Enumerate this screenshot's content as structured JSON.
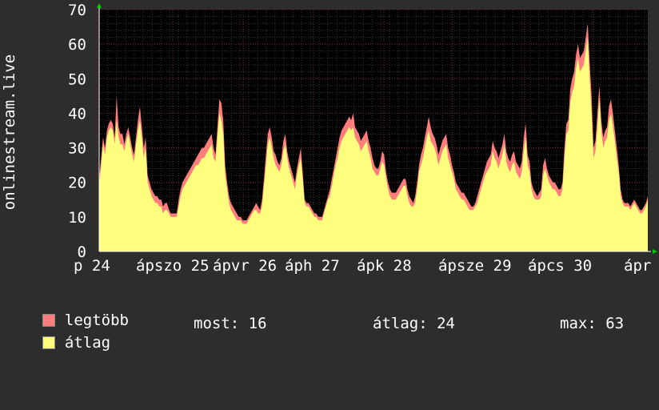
{
  "chart_data": {
    "type": "area",
    "ylabel": "onlinestream.live",
    "ylim": [
      0,
      70
    ],
    "yticks": [
      0,
      10,
      20,
      30,
      40,
      50,
      60,
      70
    ],
    "xtick_labels": [
      "p 24",
      "ápszo 25",
      "ápvr 26",
      "áph 27",
      "ápk 28",
      "ápsze 29",
      "ápcs 30",
      "ápr"
    ],
    "grid": true,
    "series": [
      {
        "name": "legtöbb",
        "color": "#ff7d7d",
        "values": [
          21,
          27,
          33,
          30,
          35,
          37,
          38,
          37,
          33,
          45,
          36,
          34,
          34,
          31,
          34,
          36,
          33,
          30,
          28,
          33,
          38,
          42,
          36,
          30,
          33,
          22,
          20,
          18,
          17,
          16,
          16,
          15,
          15,
          13,
          14,
          14,
          12,
          11,
          11,
          11,
          11,
          15,
          18,
          20,
          21,
          22,
          23,
          24,
          25,
          26,
          27,
          28,
          29,
          30,
          30,
          31,
          32,
          33,
          34,
          30,
          28,
          36,
          44,
          43,
          38,
          25,
          20,
          16,
          14,
          13,
          12,
          11,
          10,
          10,
          9,
          9,
          9,
          10,
          11,
          12,
          13,
          14,
          13,
          12,
          15,
          21,
          28,
          34,
          36,
          33,
          29,
          28,
          26,
          25,
          27,
          32,
          34,
          29,
          26,
          24,
          22,
          20,
          24,
          27,
          30,
          23,
          15,
          14,
          14,
          13,
          12,
          11,
          11,
          10,
          10,
          10,
          12,
          14,
          16,
          18,
          21,
          24,
          27,
          30,
          33,
          35,
          36,
          37,
          38,
          39,
          38,
          40,
          36,
          35,
          34,
          32,
          33,
          34,
          35,
          32,
          30,
          27,
          25,
          24,
          24,
          26,
          29,
          28,
          23,
          20,
          18,
          17,
          17,
          17,
          18,
          19,
          20,
          21,
          21,
          18,
          16,
          15,
          14,
          16,
          20,
          25,
          28,
          30,
          33,
          36,
          39,
          36,
          34,
          33,
          31,
          28,
          30,
          32,
          33,
          34,
          30,
          28,
          25,
          23,
          20,
          19,
          18,
          17,
          17,
          16,
          15,
          14,
          13,
          13,
          14,
          16,
          18,
          20,
          22,
          24,
          26,
          27,
          28,
          32,
          30,
          29,
          27,
          29,
          31,
          34,
          29,
          27,
          26,
          28,
          29,
          26,
          25,
          24,
          26,
          33,
          37,
          28,
          26,
          20,
          18,
          17,
          16,
          17,
          18,
          25,
          27,
          24,
          22,
          21,
          20,
          20,
          19,
          18,
          18,
          20,
          30,
          37,
          38,
          47,
          50,
          52,
          57,
          60,
          56,
          57,
          58,
          62,
          66,
          55,
          45,
          30,
          32,
          40,
          48,
          38,
          33,
          35,
          36,
          42,
          44,
          40,
          35,
          30,
          25,
          18,
          15,
          14,
          14,
          14,
          13,
          14,
          15,
          14,
          13,
          12,
          12,
          13,
          14,
          16
        ]
      },
      {
        "name": "átlag",
        "color": "#ffff7d",
        "values": [
          19,
          25,
          31,
          28,
          33,
          35,
          36,
          35,
          31,
          38,
          33,
          31,
          31,
          29,
          32,
          34,
          31,
          28,
          26,
          31,
          35,
          38,
          33,
          27,
          30,
          20,
          18,
          16,
          15,
          14,
          14,
          13,
          13,
          11,
          12,
          12,
          11,
          10,
          10,
          10,
          10,
          13,
          16,
          18,
          19,
          20,
          21,
          22,
          23,
          24,
          25,
          25,
          26,
          27,
          27,
          28,
          29,
          30,
          31,
          27,
          26,
          33,
          40,
          38,
          34,
          22,
          18,
          14,
          12,
          11,
          10,
          9,
          9,
          9,
          8,
          8,
          8,
          9,
          10,
          11,
          12,
          12,
          11,
          11,
          13,
          19,
          25,
          31,
          33,
          30,
          27,
          25,
          24,
          23,
          25,
          29,
          31,
          27,
          24,
          22,
          20,
          18,
          22,
          25,
          27,
          21,
          14,
          13,
          13,
          12,
          11,
          10,
          10,
          9,
          9,
          9,
          11,
          13,
          15,
          16,
          19,
          22,
          25,
          27,
          30,
          32,
          33,
          34,
          35,
          36,
          35,
          36,
          33,
          32,
          31,
          29,
          30,
          31,
          32,
          29,
          27,
          24,
          23,
          22,
          22,
          24,
          26,
          25,
          21,
          18,
          16,
          15,
          15,
          15,
          16,
          17,
          18,
          19,
          19,
          16,
          14,
          13,
          13,
          14,
          18,
          23,
          25,
          27,
          30,
          33,
          35,
          32,
          31,
          30,
          28,
          25,
          27,
          29,
          30,
          31,
          27,
          25,
          23,
          21,
          18,
          17,
          16,
          15,
          15,
          14,
          13,
          12,
          12,
          12,
          13,
          14,
          16,
          18,
          20,
          22,
          23,
          24,
          25,
          29,
          27,
          26,
          24,
          26,
          28,
          31,
          26,
          24,
          23,
          25,
          26,
          23,
          22,
          21,
          23,
          29,
          33,
          25,
          23,
          18,
          16,
          15,
          15,
          15,
          16,
          22,
          24,
          22,
          20,
          19,
          18,
          18,
          17,
          16,
          16,
          18,
          27,
          34,
          35,
          43,
          46,
          48,
          53,
          56,
          52,
          53,
          54,
          58,
          62,
          50,
          40,
          27,
          29,
          36,
          44,
          35,
          30,
          32,
          33,
          38,
          40,
          36,
          32,
          27,
          23,
          16,
          14,
          13,
          13,
          13,
          12,
          13,
          14,
          13,
          12,
          11,
          11,
          12,
          13,
          15
        ]
      }
    ]
  },
  "legend": {
    "items": [
      {
        "name": "legtöbb",
        "color": "#ff7d7d"
      },
      {
        "name": "átlag",
        "color": "#ffff7d"
      }
    ],
    "now_label": "most:",
    "now_value": "16",
    "avg_label": "átlag:",
    "avg_value": "24",
    "max_label": "max:",
    "max_value": "63"
  }
}
